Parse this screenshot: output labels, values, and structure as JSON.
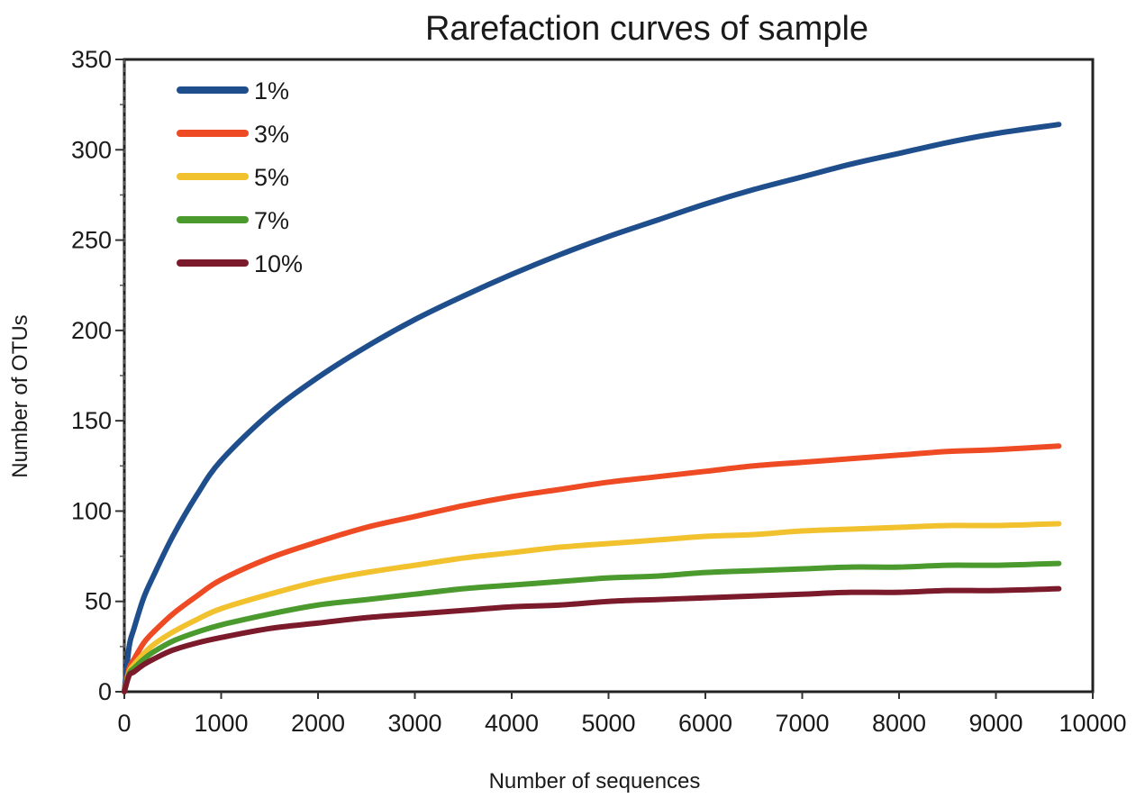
{
  "chart_data": {
    "type": "line",
    "title": "Rarefaction curves of sample",
    "xlabel": "Number of sequences",
    "ylabel": "Number of OTUs",
    "xlim": [
      0,
      10000
    ],
    "ylim": [
      0,
      350
    ],
    "xticks": [
      0,
      1000,
      2000,
      3000,
      4000,
      5000,
      6000,
      7000,
      8000,
      9000,
      10000
    ],
    "yticks": [
      0,
      50,
      100,
      150,
      200,
      250,
      300,
      350
    ],
    "grid": false,
    "legend_position": "top-left",
    "x": [
      0,
      50,
      100,
      200,
      300,
      500,
      750,
      1000,
      1500,
      2000,
      2500,
      3000,
      3500,
      4000,
      4500,
      5000,
      5500,
      6000,
      6500,
      7000,
      7500,
      8000,
      8500,
      9000,
      9650
    ],
    "series": [
      {
        "name": "1%",
        "color": "#1f4e8c",
        "values": [
          0,
          25,
          35,
          52,
          64,
          86,
          109,
          128,
          154,
          174,
          191,
          206,
          219,
          231,
          242,
          252,
          261,
          270,
          278,
          285,
          292,
          298,
          304,
          309,
          314
        ]
      },
      {
        "name": "3%",
        "color": "#ee4a24",
        "values": [
          0,
          13,
          18,
          27,
          33,
          43,
          53,
          62,
          74,
          83,
          91,
          97,
          103,
          108,
          112,
          116,
          119,
          122,
          125,
          127,
          129,
          131,
          133,
          134,
          136
        ]
      },
      {
        "name": "5%",
        "color": "#f2c12e",
        "values": [
          0,
          11,
          15,
          21,
          26,
          33,
          40,
          46,
          54,
          61,
          66,
          70,
          74,
          77,
          80,
          82,
          84,
          86,
          87,
          89,
          90,
          91,
          92,
          92,
          93
        ]
      },
      {
        "name": "7%",
        "color": "#4b9a2e",
        "values": [
          0,
          10,
          13,
          18,
          22,
          28,
          33,
          37,
          43,
          48,
          51,
          54,
          57,
          59,
          61,
          63,
          64,
          66,
          67,
          68,
          69,
          69,
          70,
          70,
          71
        ]
      },
      {
        "name": "10%",
        "color": "#7a1a2a",
        "values": [
          0,
          9,
          11,
          15,
          18,
          23,
          27,
          30,
          35,
          38,
          41,
          43,
          45,
          47,
          48,
          50,
          51,
          52,
          53,
          54,
          55,
          55,
          56,
          56,
          57
        ]
      }
    ]
  }
}
